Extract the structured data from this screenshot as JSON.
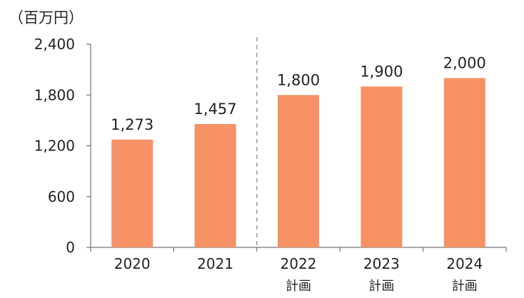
{
  "chart_data": {
    "type": "bar",
    "unit_label": "（百万円）",
    "categories": [
      "2020",
      "2021",
      "2022",
      "2023",
      "2024"
    ],
    "sublabels": [
      "",
      "",
      "計画",
      "計画",
      "計画"
    ],
    "values": [
      1273,
      1457,
      1800,
      1900,
      2000
    ],
    "value_labels": [
      "1,273",
      "1,457",
      "1,800",
      "1,900",
      "2,000"
    ],
    "yticks": [
      0,
      600,
      1200,
      1800,
      2400
    ],
    "ytick_labels": [
      "0",
      "600",
      "1,200",
      "1,800",
      "2,400"
    ],
    "ylim": [
      0,
      2400
    ],
    "bar_color": "#f59165",
    "divider": "dashed line between 2021 and 2022",
    "grid": false,
    "legend": "none"
  }
}
